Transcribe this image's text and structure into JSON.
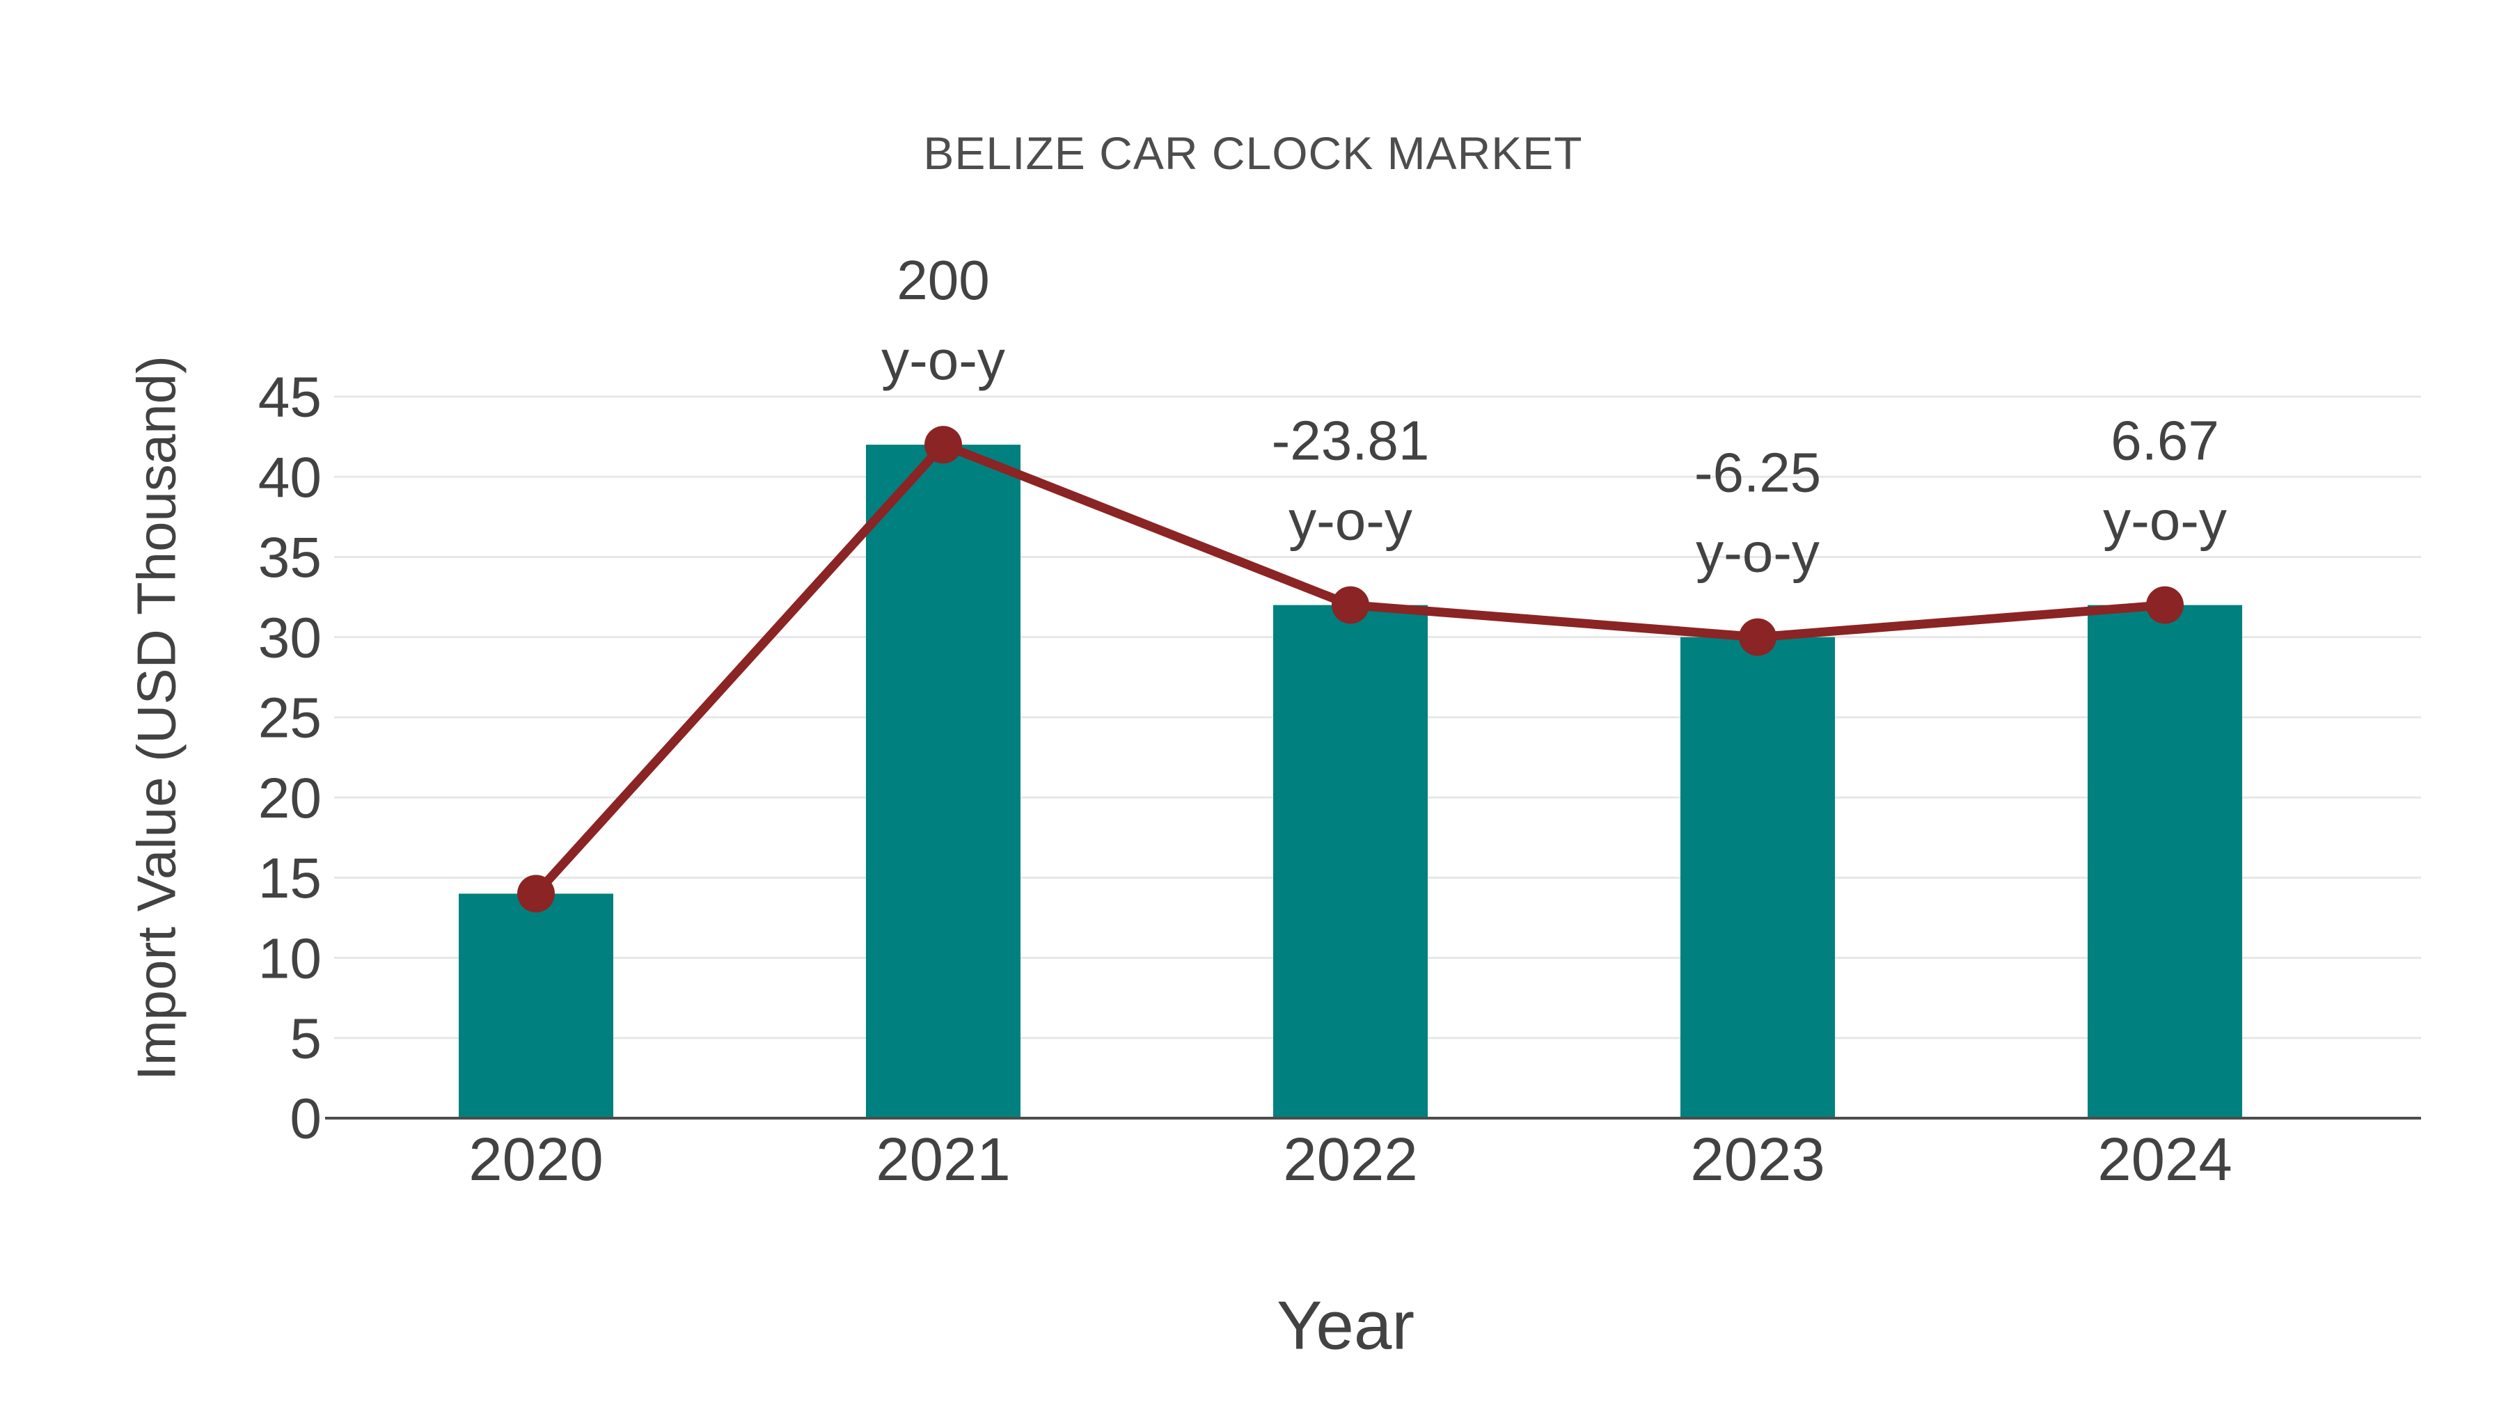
{
  "page": {
    "background": "#ffffff"
  },
  "chart_data": {
    "type": "bar+line",
    "title": "BELIZE CAR CLOCK MARKET",
    "xlabel": "Year",
    "ylabel": "Import Value (USD Thousand)",
    "categories": [
      "2020",
      "2021",
      "2022",
      "2023",
      "2024"
    ],
    "series": [
      {
        "name": "Import Value bars",
        "type": "bar",
        "color": "#00807E",
        "values": [
          14,
          42,
          32,
          30,
          32
        ]
      },
      {
        "name": "Import Value trend line",
        "type": "line",
        "color": "#8B2424",
        "values": [
          14,
          42,
          32,
          30,
          32
        ]
      }
    ],
    "annotations": {
      "values": [
        null,
        "200",
        "-23.81",
        "-6.25",
        "6.67"
      ],
      "suffix": "y-o-y"
    },
    "ylim": [
      0,
      45
    ],
    "ytick_step": 5,
    "yticks": [
      0,
      5,
      10,
      15,
      20,
      25,
      30,
      35,
      40,
      45
    ],
    "grid": "horizontal",
    "legend": "none",
    "colors": {
      "grid": "#E7E7E7",
      "axis_line": "#4D4D4D",
      "tick_text": "#424242",
      "annotation_text": "#424242",
      "title_text": "#4D4D4D"
    }
  }
}
